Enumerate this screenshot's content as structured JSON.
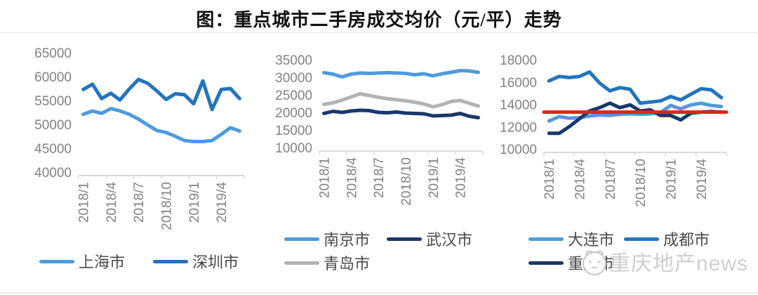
{
  "title": "图：重点城市二手房成交均价（元/平）走势",
  "watermark": {
    "text": "重庆地产news"
  },
  "colors": {
    "light_blue": "#4e9bde",
    "medium_blue": "#2274be",
    "navy": "#17386b",
    "gray": "#b3b3b3",
    "red": "#e0251b",
    "axis": "#d9d9d9",
    "tick_text": "#828282"
  },
  "chart_data": [
    {
      "type": "line",
      "x": [
        "2018/1",
        "2018/2",
        "2018/3",
        "2018/4",
        "2018/5",
        "2018/6",
        "2018/7",
        "2018/8",
        "2018/9",
        "2018/10",
        "2018/11",
        "2018/12",
        "2019/1",
        "2019/2",
        "2019/3",
        "2019/4",
        "2019/5",
        "2019/6"
      ],
      "x_tick_indices": [
        0,
        3,
        6,
        9,
        12,
        15
      ],
      "x_tick_labels": [
        "2018/1",
        "2018/4",
        "2018/7",
        "2018/10",
        "2019/1",
        "2019/4"
      ],
      "ylim": [
        40000,
        65000
      ],
      "y_ticks": [
        65000,
        60000,
        55000,
        50000,
        45000,
        40000
      ],
      "grid": false,
      "legend_position": "bottom",
      "series": [
        {
          "name": "上海市",
          "color": "#4e9bde",
          "values": [
            52100,
            52800,
            52300,
            53300,
            52800,
            52100,
            51100,
            49900,
            48700,
            48300,
            47500,
            46600,
            46400,
            46400,
            46600,
            47900,
            49300,
            48600
          ]
        },
        {
          "name": "深圳市",
          "color": "#2274be",
          "values": [
            57300,
            58400,
            55400,
            56500,
            55100,
            57400,
            59400,
            58600,
            57000,
            55200,
            56400,
            56200,
            54300,
            59100,
            53100,
            57300,
            57500,
            55400
          ]
        }
      ],
      "legend_rows": [
        [
          "上海市",
          "深圳市"
        ]
      ]
    },
    {
      "type": "line",
      "x": [
        "2018/1",
        "2018/2",
        "2018/3",
        "2018/4",
        "2018/5",
        "2018/6",
        "2018/7",
        "2018/8",
        "2018/9",
        "2018/10",
        "2018/11",
        "2018/12",
        "2019/1",
        "2019/2",
        "2019/3",
        "2019/4",
        "2019/5",
        "2019/6"
      ],
      "x_tick_indices": [
        0,
        3,
        6,
        9,
        12,
        15
      ],
      "x_tick_labels": [
        "2018/1",
        "2018/4",
        "2018/7",
        "2018/10",
        "2019/1",
        "2019/4"
      ],
      "ylim": [
        10000,
        35000
      ],
      "y_ticks": [
        35000,
        30000,
        25000,
        20000,
        15000,
        10000
      ],
      "grid": false,
      "legend_position": "bottom",
      "series": [
        {
          "name": "南京市",
          "color": "#4e9bde",
          "values": [
            31300,
            30900,
            30100,
            30900,
            31200,
            31100,
            31200,
            31300,
            31200,
            31100,
            30700,
            31000,
            30400,
            31000,
            31400,
            31900,
            31800,
            31400
          ]
        },
        {
          "name": "武汉市",
          "color": "#17386b",
          "values": [
            19700,
            20300,
            20000,
            20400,
            20600,
            20500,
            20000,
            19900,
            20100,
            19800,
            19700,
            19600,
            19000,
            19100,
            19200,
            19700,
            18900,
            18500
          ]
        },
        {
          "name": "青岛市",
          "color": "#b3b3b3",
          "values": [
            22300,
            22700,
            23500,
            24400,
            25300,
            24800,
            24300,
            23900,
            23600,
            23300,
            22900,
            22400,
            21600,
            22200,
            23100,
            23400,
            22600,
            21800
          ]
        }
      ],
      "legend_rows": [
        [
          "南京市",
          "武汉市"
        ],
        [
          "青岛市"
        ]
      ]
    },
    {
      "type": "line",
      "x": [
        "2018/1",
        "2018/2",
        "2018/3",
        "2018/4",
        "2018/5",
        "2018/6",
        "2018/7",
        "2018/8",
        "2018/9",
        "2018/10",
        "2018/11",
        "2018/12",
        "2019/1",
        "2019/2",
        "2019/3",
        "2019/4",
        "2019/5",
        "2019/6"
      ],
      "x_tick_indices": [
        0,
        3,
        6,
        9,
        12,
        15
      ],
      "x_tick_labels": [
        "2018/1",
        "2018/4",
        "2018/7",
        "2018/10",
        "2019/1",
        "2019/4"
      ],
      "ylim": [
        10000,
        18000
      ],
      "y_ticks": [
        18000,
        16000,
        14000,
        12000,
        10000
      ],
      "grid": false,
      "legend_position": "bottom",
      "series": [
        {
          "name": "大连市",
          "color": "#4e9bde",
          "values": [
            12500,
            12900,
            12750,
            12800,
            12950,
            13050,
            13000,
            13100,
            13150,
            13100,
            13150,
            13250,
            13900,
            13600,
            13950,
            14100,
            13900,
            13800
          ]
        },
        {
          "name": "成都市",
          "color": "#2274be",
          "values": [
            16100,
            16500,
            16400,
            16500,
            16900,
            15900,
            15200,
            15500,
            15350,
            14100,
            14200,
            14300,
            14700,
            14400,
            14900,
            15400,
            15300,
            14600
          ]
        },
        {
          "name": "重庆市",
          "color": "#17386b",
          "values": [
            11400,
            11400,
            12000,
            12700,
            13400,
            13700,
            14100,
            13700,
            13950,
            13400,
            13500,
            13000,
            13000,
            12600,
            13200,
            13300,
            13350,
            13300
          ]
        }
      ],
      "reference_line": {
        "value": 13300,
        "color": "#e0251b"
      },
      "legend_rows": [
        [
          "大连市",
          "成都市"
        ],
        [
          "重庆市"
        ]
      ]
    }
  ]
}
